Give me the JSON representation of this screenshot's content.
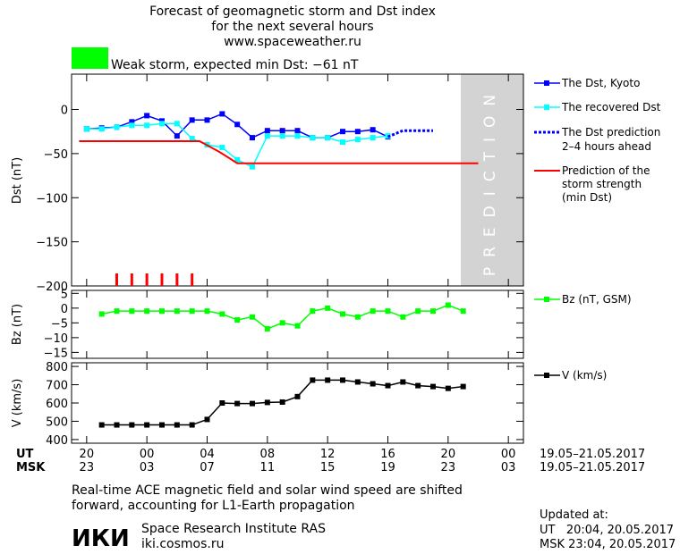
{
  "header": {
    "title_line1": "Forecast of geomagnetic storm and Dst index",
    "title_line2": "for the next several hours",
    "site": "www.spaceweather.ru",
    "status_color": "#00ff00",
    "status_text": "Weak storm, expected min Dst: −61 nT"
  },
  "prediction_label": "PREDICTION",
  "footer": {
    "note_line1": "Real-time ACE magnetic field and solar wind speed are shifted",
    "note_line2": "forward, accounting for L1-Earth propagation",
    "logo": "ИКИ",
    "institute": "Space Research Institute RAS",
    "institute_url": "iki.cosmos.ru",
    "updated_label": "Updated at:",
    "updated_ut": "UT   20:04, 20.05.2017",
    "updated_msk": "MSK 23:04, 20.05.2017"
  },
  "chart_data": [
    {
      "type": "line",
      "panel": "dst",
      "ylabel": "Dst (nT)",
      "ylim": [
        -200,
        40
      ],
      "yticks": [
        0,
        -50,
        -100,
        -150,
        -200
      ],
      "ytick_labels": [
        "0",
        "−50",
        "−100",
        "−150",
        "−200"
      ],
      "prediction_region_hours": [
        20,
        24
      ],
      "series": [
        {
          "name": "The Dst, Kyoto",
          "color": "#0000ff",
          "marker": "square",
          "x": [
            0,
            1,
            2,
            3,
            4,
            5,
            6,
            7,
            8,
            9,
            10,
            11,
            12,
            13,
            14,
            15,
            16,
            17,
            18,
            19,
            20
          ],
          "y": [
            -22,
            -21,
            -20,
            -14,
            -7,
            -13,
            -30,
            -12,
            -12,
            -5,
            -17,
            -32,
            -24,
            -24,
            -24,
            -32,
            -32,
            -25,
            -25,
            -23,
            -31
          ]
        },
        {
          "name": "The recovered Dst",
          "color": "#00ffff",
          "marker": "square",
          "x": [
            0,
            1,
            2,
            3,
            4,
            5,
            6,
            7,
            8,
            9,
            10,
            11,
            12,
            13,
            14,
            15,
            16,
            17,
            18,
            19,
            20
          ],
          "y": [
            -22,
            -22,
            -20,
            -18,
            -18,
            -16,
            -16,
            -33,
            -40,
            -43,
            -57,
            -65,
            -30,
            -30,
            -30,
            -32,
            -32,
            -37,
            -34,
            -32,
            -30
          ]
        },
        {
          "name": "The Dst prediction 2–4 hours ahead",
          "color": "#0000ff",
          "style": "dotted",
          "x": [
            20,
            21,
            23
          ],
          "y": [
            -31,
            -24,
            -24
          ]
        },
        {
          "name": "Prediction of the storm strength (min Dst)",
          "color": "#ff0000",
          "style": "solid",
          "x": [
            -0.5,
            7.5,
            8.8,
            10,
            13,
            26
          ],
          "y": [
            -36,
            -36,
            -48,
            -61,
            -61,
            -61
          ]
        }
      ],
      "event_ticks_x": [
        2,
        3,
        4,
        5,
        6,
        7
      ]
    },
    {
      "type": "line",
      "panel": "bz",
      "ylabel": "Bz (nT)",
      "ylim": [
        -17,
        6
      ],
      "yticks": [
        5,
        0,
        -5,
        -10,
        -15
      ],
      "ytick_labels": [
        "5",
        "0",
        "−5",
        "−10",
        "−15"
      ],
      "series": [
        {
          "name": "Bz (nT, GSM)",
          "color": "#00ff00",
          "marker": "square",
          "x": [
            1,
            2,
            3,
            4,
            5,
            6,
            7,
            8,
            9,
            10,
            11,
            12,
            13,
            14,
            15,
            16,
            17,
            18,
            19,
            20,
            21,
            22,
            23,
            24,
            25
          ],
          "y": [
            -2,
            -1,
            -1,
            -1,
            -1,
            -1,
            -1,
            -1,
            -2,
            -4,
            -3,
            -7,
            -5,
            -6,
            -1,
            0,
            -2,
            -3,
            -1,
            -1,
            -3,
            -1,
            -1,
            1,
            -1
          ]
        }
      ]
    },
    {
      "type": "line",
      "panel": "v",
      "ylabel": "V (km/s)",
      "ylim": [
        380,
        820
      ],
      "yticks": [
        800,
        700,
        600,
        500,
        400
      ],
      "ytick_labels": [
        "800",
        "700",
        "600",
        "500",
        "400"
      ],
      "series": [
        {
          "name": "V (km/s)",
          "color": "#000000",
          "marker": "square",
          "x": [
            1,
            2,
            3,
            4,
            5,
            6,
            7,
            8,
            9,
            10,
            11,
            12,
            13,
            14,
            15,
            16,
            17,
            18,
            19,
            20,
            21,
            22,
            23,
            24,
            25
          ],
          "y": [
            480,
            480,
            480,
            480,
            480,
            480,
            480,
            510,
            600,
            597,
            597,
            603,
            605,
            635,
            725,
            725,
            725,
            715,
            705,
            695,
            715,
            695,
            690,
            680,
            690
          ]
        }
      ]
    }
  ],
  "x_axis": {
    "ut_label": "UT",
    "msk_label": "MSK",
    "ut_ticks": [
      "20",
      "00",
      "04",
      "08",
      "12",
      "16",
      "20",
      "00"
    ],
    "msk_ticks": [
      "23",
      "03",
      "07",
      "11",
      "15",
      "19",
      "23",
      "03"
    ],
    "date_range_ut": "19.05–21.05.2017",
    "date_range_msk": "19.05–21.05.2017"
  },
  "legend": {
    "dst": [
      "The Dst, Kyoto",
      "The recovered Dst",
      "The Dst prediction",
      "2–4 hours ahead",
      "Prediction of the",
      "storm strength",
      "(min Dst)"
    ],
    "bz": "Bz (nT, GSM)",
    "v": "V (km/s)"
  }
}
